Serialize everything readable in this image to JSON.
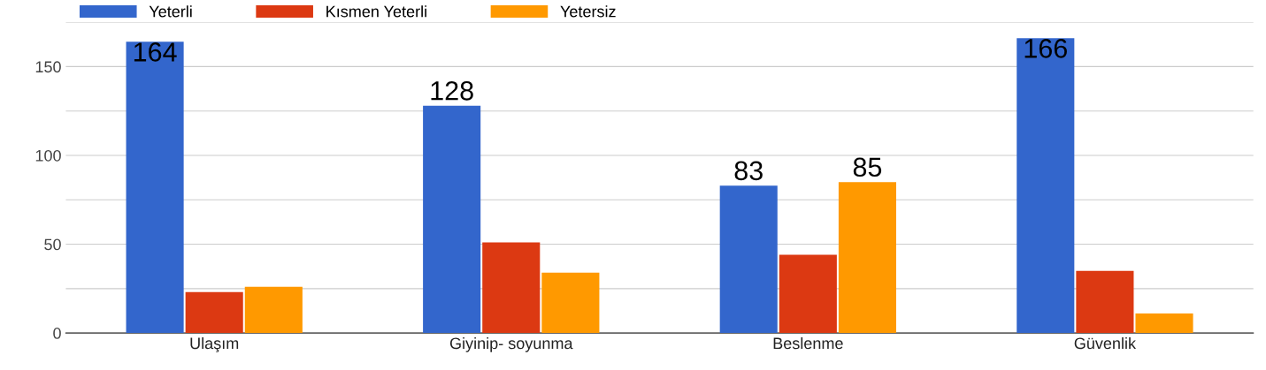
{
  "chart_data": {
    "type": "bar",
    "categories": [
      "Ulaşım",
      "Giyinip- soyunma",
      "Beslenme",
      "Güvenlik"
    ],
    "series": [
      {
        "name": "Yeterli",
        "color": "#3366cc",
        "values": [
          164,
          128,
          83,
          166
        ],
        "value_labels": [
          "164",
          "128",
          "83",
          "166"
        ]
      },
      {
        "name": "Kısmen Yeterli",
        "color": "#dc3912",
        "values": [
          23,
          51,
          44,
          35
        ]
      },
      {
        "name": "Yetersiz",
        "color": "#ff9900",
        "values": [
          26,
          34,
          85,
          11
        ],
        "value_labels": [
          null,
          null,
          "85",
          null
        ]
      }
    ],
    "ylim": [
      0,
      175
    ],
    "yticks": [
      0,
      {
        "value": 25,
        "label": null
      },
      50,
      {
        "value": 75,
        "label": null
      },
      100,
      {
        "value": 125,
        "label": null
      },
      150,
      {
        "value": 175,
        "label": null
      }
    ],
    "grid": "y",
    "legend": "top left"
  }
}
